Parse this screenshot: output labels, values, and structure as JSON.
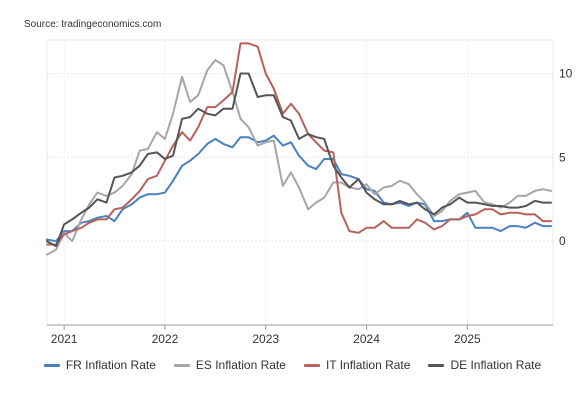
{
  "source_text": "Source: tradingeconomics.com",
  "chart_data": {
    "type": "line",
    "title": "",
    "xlabel": "",
    "ylabel": "",
    "x_ticks": [
      "2021",
      "2022",
      "2023",
      "2024",
      "2025"
    ],
    "y_ticks": [
      "0",
      "5",
      "10"
    ],
    "xlim": [
      2020.83,
      2025.85
    ],
    "ylim": [
      -5,
      12
    ],
    "grid": true,
    "legend_position": "bottom",
    "series": [
      {
        "name": "FR Inflation Rate",
        "color": "#4a81bf",
        "points": [
          [
            2020.83,
            0.1
          ],
          [
            2020.92,
            0.0
          ],
          [
            2021.0,
            0.6
          ],
          [
            2021.08,
            0.6
          ],
          [
            2021.17,
            1.1
          ],
          [
            2021.25,
            1.2
          ],
          [
            2021.33,
            1.4
          ],
          [
            2021.42,
            1.5
          ],
          [
            2021.5,
            1.2
          ],
          [
            2021.58,
            1.9
          ],
          [
            2021.67,
            2.2
          ],
          [
            2021.75,
            2.6
          ],
          [
            2021.83,
            2.8
          ],
          [
            2021.92,
            2.8
          ],
          [
            2022.0,
            2.9
          ],
          [
            2022.08,
            3.6
          ],
          [
            2022.17,
            4.5
          ],
          [
            2022.25,
            4.8
          ],
          [
            2022.33,
            5.2
          ],
          [
            2022.42,
            5.8
          ],
          [
            2022.5,
            6.1
          ],
          [
            2022.58,
            5.8
          ],
          [
            2022.67,
            5.6
          ],
          [
            2022.75,
            6.2
          ],
          [
            2022.83,
            6.2
          ],
          [
            2022.92,
            5.9
          ],
          [
            2023.0,
            6.0
          ],
          [
            2023.08,
            6.3
          ],
          [
            2023.17,
            5.7
          ],
          [
            2023.25,
            5.9
          ],
          [
            2023.33,
            5.1
          ],
          [
            2023.42,
            4.5
          ],
          [
            2023.5,
            4.3
          ],
          [
            2023.58,
            4.9
          ],
          [
            2023.67,
            4.9
          ],
          [
            2023.75,
            4.0
          ],
          [
            2023.83,
            3.9
          ],
          [
            2023.92,
            3.7
          ],
          [
            2024.0,
            3.1
          ],
          [
            2024.08,
            3.0
          ],
          [
            2024.17,
            2.3
          ],
          [
            2024.25,
            2.2
          ],
          [
            2024.33,
            2.3
          ],
          [
            2024.42,
            2.1
          ],
          [
            2024.5,
            2.3
          ],
          [
            2024.58,
            2.2
          ],
          [
            2024.67,
            1.2
          ],
          [
            2024.75,
            1.2
          ],
          [
            2024.83,
            1.3
          ],
          [
            2024.92,
            1.3
          ],
          [
            2025.0,
            1.7
          ],
          [
            2025.08,
            0.8
          ],
          [
            2025.17,
            0.8
          ],
          [
            2025.25,
            0.8
          ],
          [
            2025.33,
            0.6
          ],
          [
            2025.42,
            0.9
          ],
          [
            2025.5,
            0.9
          ],
          [
            2025.58,
            0.8
          ],
          [
            2025.67,
            1.1
          ],
          [
            2025.75,
            0.9
          ],
          [
            2025.83,
            0.9
          ]
        ]
      },
      {
        "name": "ES Inflation Rate",
        "color": "#a6a6a6",
        "points": [
          [
            2020.83,
            -0.8
          ],
          [
            2020.92,
            -0.5
          ],
          [
            2021.0,
            0.5
          ],
          [
            2021.08,
            0.0
          ],
          [
            2021.17,
            1.3
          ],
          [
            2021.25,
            2.2
          ],
          [
            2021.33,
            2.9
          ],
          [
            2021.42,
            2.7
          ],
          [
            2021.5,
            2.9
          ],
          [
            2021.58,
            3.3
          ],
          [
            2021.67,
            4.0
          ],
          [
            2021.75,
            5.4
          ],
          [
            2021.83,
            5.5
          ],
          [
            2021.92,
            6.5
          ],
          [
            2022.0,
            6.1
          ],
          [
            2022.08,
            7.6
          ],
          [
            2022.17,
            9.8
          ],
          [
            2022.25,
            8.3
          ],
          [
            2022.33,
            8.7
          ],
          [
            2022.42,
            10.2
          ],
          [
            2022.5,
            10.8
          ],
          [
            2022.58,
            10.5
          ],
          [
            2022.67,
            8.9
          ],
          [
            2022.75,
            7.3
          ],
          [
            2022.83,
            6.8
          ],
          [
            2022.92,
            5.7
          ],
          [
            2023.0,
            5.9
          ],
          [
            2023.08,
            6.0
          ],
          [
            2023.17,
            3.3
          ],
          [
            2023.25,
            4.1
          ],
          [
            2023.33,
            3.2
          ],
          [
            2023.42,
            1.9
          ],
          [
            2023.5,
            2.3
          ],
          [
            2023.58,
            2.6
          ],
          [
            2023.67,
            3.5
          ],
          [
            2023.75,
            3.5
          ],
          [
            2023.83,
            3.2
          ],
          [
            2023.92,
            3.1
          ],
          [
            2024.0,
            3.4
          ],
          [
            2024.08,
            2.8
          ],
          [
            2024.17,
            3.2
          ],
          [
            2024.25,
            3.3
          ],
          [
            2024.33,
            3.6
          ],
          [
            2024.42,
            3.4
          ],
          [
            2024.5,
            2.8
          ],
          [
            2024.58,
            2.3
          ],
          [
            2024.67,
            1.5
          ],
          [
            2024.75,
            1.8
          ],
          [
            2024.83,
            2.4
          ],
          [
            2024.92,
            2.8
          ],
          [
            2025.0,
            2.9
          ],
          [
            2025.08,
            3.0
          ],
          [
            2025.17,
            2.3
          ],
          [
            2025.25,
            2.2
          ],
          [
            2025.33,
            2.0
          ],
          [
            2025.42,
            2.3
          ],
          [
            2025.5,
            2.7
          ],
          [
            2025.58,
            2.7
          ],
          [
            2025.67,
            3.0
          ],
          [
            2025.75,
            3.1
          ],
          [
            2025.83,
            3.0
          ]
        ]
      },
      {
        "name": "IT Inflation Rate",
        "color": "#b5625c",
        "points": [
          [
            2020.83,
            -0.2
          ],
          [
            2020.92,
            -0.2
          ],
          [
            2021.0,
            0.4
          ],
          [
            2021.08,
            0.6
          ],
          [
            2021.17,
            0.8
          ],
          [
            2021.25,
            1.1
          ],
          [
            2021.33,
            1.3
          ],
          [
            2021.42,
            1.3
          ],
          [
            2021.5,
            1.9
          ],
          [
            2021.58,
            2.0
          ],
          [
            2021.67,
            2.5
          ],
          [
            2021.75,
            3.0
          ],
          [
            2021.83,
            3.7
          ],
          [
            2021.92,
            3.9
          ],
          [
            2022.0,
            4.8
          ],
          [
            2022.08,
            5.7
          ],
          [
            2022.17,
            6.5
          ],
          [
            2022.25,
            6.0
          ],
          [
            2022.33,
            6.8
          ],
          [
            2022.42,
            8.0
          ],
          [
            2022.5,
            8.0
          ],
          [
            2022.58,
            8.4
          ],
          [
            2022.67,
            8.9
          ],
          [
            2022.75,
            11.8
          ],
          [
            2022.83,
            11.8
          ],
          [
            2022.92,
            11.6
          ],
          [
            2023.0,
            10.0
          ],
          [
            2023.08,
            9.1
          ],
          [
            2023.17,
            7.6
          ],
          [
            2023.25,
            8.2
          ],
          [
            2023.33,
            7.6
          ],
          [
            2023.42,
            6.4
          ],
          [
            2023.5,
            5.9
          ],
          [
            2023.58,
            5.4
          ],
          [
            2023.67,
            5.3
          ],
          [
            2023.75,
            1.7
          ],
          [
            2023.83,
            0.6
          ],
          [
            2023.92,
            0.5
          ],
          [
            2024.0,
            0.8
          ],
          [
            2024.08,
            0.8
          ],
          [
            2024.17,
            1.2
          ],
          [
            2024.25,
            0.8
          ],
          [
            2024.33,
            0.8
          ],
          [
            2024.42,
            0.8
          ],
          [
            2024.5,
            1.3
          ],
          [
            2024.58,
            1.1
          ],
          [
            2024.67,
            0.7
          ],
          [
            2024.75,
            0.9
          ],
          [
            2024.83,
            1.3
          ],
          [
            2024.92,
            1.3
          ],
          [
            2025.0,
            1.5
          ],
          [
            2025.08,
            1.6
          ],
          [
            2025.17,
            1.9
          ],
          [
            2025.25,
            1.9
          ],
          [
            2025.33,
            1.6
          ],
          [
            2025.42,
            1.7
          ],
          [
            2025.5,
            1.7
          ],
          [
            2025.58,
            1.6
          ],
          [
            2025.67,
            1.6
          ],
          [
            2025.75,
            1.2
          ],
          [
            2025.83,
            1.2
          ]
        ]
      },
      {
        "name": "DE Inflation Rate",
        "color": "#555555",
        "points": [
          [
            2020.83,
            0.0
          ],
          [
            2020.92,
            -0.3
          ],
          [
            2021.0,
            1.0
          ],
          [
            2021.08,
            1.3
          ],
          [
            2021.17,
            1.7
          ],
          [
            2021.25,
            2.0
          ],
          [
            2021.33,
            2.5
          ],
          [
            2021.42,
            2.3
          ],
          [
            2021.5,
            3.8
          ],
          [
            2021.58,
            3.9
          ],
          [
            2021.67,
            4.1
          ],
          [
            2021.75,
            4.5
          ],
          [
            2021.83,
            5.2
          ],
          [
            2021.92,
            5.3
          ],
          [
            2022.0,
            4.9
          ],
          [
            2022.08,
            5.1
          ],
          [
            2022.17,
            7.3
          ],
          [
            2022.25,
            7.4
          ],
          [
            2022.33,
            7.9
          ],
          [
            2022.42,
            7.6
          ],
          [
            2022.5,
            7.5
          ],
          [
            2022.58,
            7.9
          ],
          [
            2022.67,
            7.9
          ],
          [
            2022.75,
            10.0
          ],
          [
            2022.83,
            10.0
          ],
          [
            2022.92,
            8.6
          ],
          [
            2023.0,
            8.7
          ],
          [
            2023.08,
            8.7
          ],
          [
            2023.17,
            7.4
          ],
          [
            2023.25,
            7.2
          ],
          [
            2023.33,
            6.1
          ],
          [
            2023.42,
            6.4
          ],
          [
            2023.5,
            6.2
          ],
          [
            2023.58,
            6.1
          ],
          [
            2023.67,
            4.5
          ],
          [
            2023.75,
            3.8
          ],
          [
            2023.83,
            3.2
          ],
          [
            2023.92,
            3.7
          ],
          [
            2024.0,
            2.9
          ],
          [
            2024.08,
            2.5
          ],
          [
            2024.17,
            2.2
          ],
          [
            2024.25,
            2.2
          ],
          [
            2024.33,
            2.4
          ],
          [
            2024.42,
            2.2
          ],
          [
            2024.5,
            2.3
          ],
          [
            2024.58,
            1.9
          ],
          [
            2024.67,
            1.6
          ],
          [
            2024.75,
            2.0
          ],
          [
            2024.83,
            2.2
          ],
          [
            2024.92,
            2.6
          ],
          [
            2025.0,
            2.3
          ],
          [
            2025.08,
            2.3
          ],
          [
            2025.17,
            2.2
          ],
          [
            2025.25,
            2.1
          ],
          [
            2025.33,
            2.1
          ],
          [
            2025.42,
            2.0
          ],
          [
            2025.5,
            2.0
          ],
          [
            2025.58,
            2.1
          ],
          [
            2025.67,
            2.4
          ],
          [
            2025.75,
            2.3
          ],
          [
            2025.83,
            2.3
          ]
        ]
      }
    ]
  }
}
